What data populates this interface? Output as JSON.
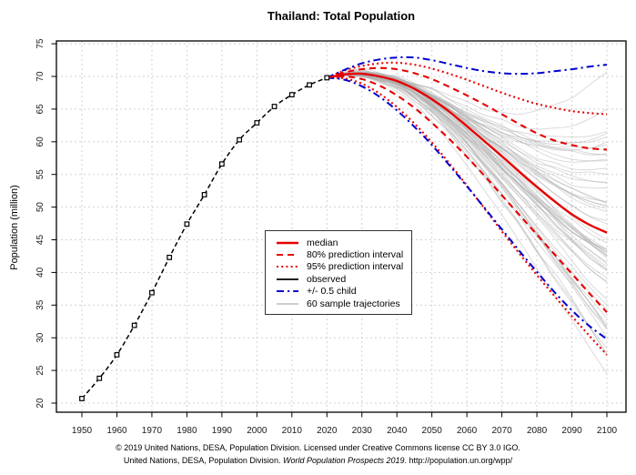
{
  "chart_data": {
    "type": "line",
    "title": "Thailand: Total Population",
    "xlabel": "",
    "ylabel": "Population (million)",
    "xlim": [
      1950,
      2100
    ],
    "ylim": [
      20,
      75
    ],
    "x_ticks": [
      1950,
      1960,
      1970,
      1980,
      1990,
      2000,
      2010,
      2020,
      2030,
      2040,
      2050,
      2060,
      2070,
      2080,
      2090,
      2100
    ],
    "y_ticks": [
      20,
      25,
      30,
      35,
      40,
      45,
      50,
      55,
      60,
      65,
      70,
      75
    ],
    "grid": true,
    "grid_color": "#d2d2d2",
    "legend_position": "inside-center-left",
    "series": [
      {
        "key": "observed",
        "label": "observed",
        "start_year": 1950,
        "step": 5,
        "color": "#000000",
        "dash": "dashed",
        "marker": "open-square",
        "width": 1.5,
        "values": [
          20.7,
          23.8,
          27.4,
          31.9,
          36.9,
          42.3,
          47.4,
          51.9,
          56.6,
          60.3,
          62.9,
          65.4,
          67.2,
          68.7,
          69.8
        ]
      },
      {
        "key": "median",
        "label": "median",
        "start_year": 2020,
        "step": 5,
        "color": "#e60000",
        "dash": "solid",
        "width": 2.4,
        "values": [
          69.8,
          70.3,
          70.4,
          70.0,
          69.3,
          68.1,
          66.5,
          64.6,
          62.4,
          60.1,
          57.8,
          55.4,
          53.1,
          50.9,
          48.9,
          47.3,
          46.1
        ]
      },
      {
        "key": "pi80_upper",
        "label": "80% prediction interval (upper)",
        "start_year": 2020,
        "step": 5,
        "color": "#e60000",
        "dash": "dashed",
        "width": 2.1,
        "values": [
          69.8,
          70.6,
          71.1,
          71.3,
          71.1,
          70.5,
          69.6,
          68.4,
          67.1,
          65.7,
          64.2,
          62.7,
          61.3,
          60.2,
          59.5,
          59.0,
          58.8
        ]
      },
      {
        "key": "pi80_lower",
        "label": "80% prediction interval (lower)",
        "start_year": 2020,
        "step": 5,
        "color": "#e60000",
        "dash": "dashed",
        "width": 2.1,
        "values": [
          69.8,
          70.0,
          69.6,
          68.6,
          67.1,
          65.2,
          62.9,
          60.4,
          57.7,
          54.8,
          51.8,
          48.8,
          45.8,
          42.8,
          39.8,
          36.8,
          33.9
        ]
      },
      {
        "key": "pi95_upper",
        "label": "95% prediction interval (upper)",
        "start_year": 2020,
        "step": 5,
        "color": "#e60000",
        "dash": "dotted",
        "width": 2.1,
        "values": [
          69.8,
          70.9,
          71.6,
          72.0,
          72.1,
          71.8,
          71.2,
          70.4,
          69.5,
          68.5,
          67.5,
          66.6,
          65.8,
          65.2,
          64.7,
          64.4,
          64.2
        ]
      },
      {
        "key": "pi95_lower",
        "label": "95% prediction interval (lower)",
        "start_year": 2020,
        "step": 5,
        "color": "#e60000",
        "dash": "dotted",
        "width": 2.1,
        "values": [
          69.8,
          69.7,
          68.9,
          67.4,
          65.3,
          62.8,
          59.9,
          56.7,
          53.3,
          49.8,
          46.3,
          42.9,
          39.6,
          36.4,
          33.3,
          30.3,
          27.4
        ]
      },
      {
        "key": "plus_half_child",
        "label": "+0.5 child",
        "start_year": 2020,
        "step": 5,
        "color": "#0000cd",
        "dash": "dashdot",
        "width": 2.0,
        "values": [
          69.8,
          71.0,
          72.0,
          72.6,
          72.9,
          72.9,
          72.5,
          71.9,
          71.3,
          70.8,
          70.5,
          70.4,
          70.5,
          70.8,
          71.1,
          71.5,
          71.8
        ]
      },
      {
        "key": "minus_half_child",
        "label": "-0.5 child",
        "start_year": 2020,
        "step": 5,
        "color": "#0000cd",
        "dash": "dashdot",
        "width": 2.0,
        "values": [
          69.8,
          69.5,
          68.5,
          66.9,
          64.8,
          62.3,
          59.5,
          56.4,
          53.2,
          49.9,
          46.6,
          43.3,
          40.1,
          37.0,
          34.2,
          31.8,
          29.8
        ]
      }
    ],
    "sample_trajectories": {
      "count": 60,
      "color": "#afafaf",
      "width": 0.9,
      "opacity": 0.5,
      "seed": 20,
      "start_year": 2020,
      "step": 5
    }
  },
  "legend": {
    "items": [
      {
        "label": "median",
        "color": "#e60000",
        "dash": "solid",
        "width": 2.4
      },
      {
        "label": "80% prediction interval",
        "color": "#e60000",
        "dash": "dashed",
        "width": 2.1
      },
      {
        "label": "95% prediction interval",
        "color": "#e60000",
        "dash": "dotted",
        "width": 2.1
      },
      {
        "label": "observed",
        "color": "#000000",
        "dash": "solid",
        "width": 1.8
      },
      {
        "label": "+/- 0.5 child",
        "color": "#0000cd",
        "dash": "dashdot",
        "width": 2.0
      },
      {
        "label": "60 sample trajectories",
        "color": "#afafaf",
        "dash": "solid",
        "width": 1.2
      }
    ]
  },
  "footer": {
    "line1": "© 2019 United Nations, DESA, Population Division. Licensed under Creative Commons license CC BY 3.0 IGO.",
    "line2_pre": "United Nations, DESA, Population Division. ",
    "line2_italic": "World Population Prospects 2019",
    "line2_post": ". http://population.un.org/wpp/"
  }
}
